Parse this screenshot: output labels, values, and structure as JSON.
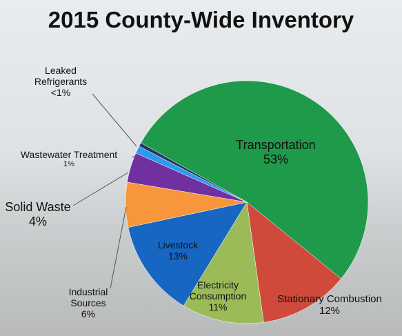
{
  "chart_data": {
    "type": "pie",
    "title": "2015 County-Wide Inventory",
    "categories": [
      "Transportation",
      "Stationary Combustion",
      "Electricity Consumption",
      "Livestock",
      "Industrial Sources",
      "Solid Waste",
      "Wastewater Treatment",
      "Leaked Refrigerants"
    ],
    "values": [
      53,
      12,
      11,
      13,
      6,
      4,
      1,
      0.5
    ],
    "value_labels": [
      "53%",
      "12%",
      "11%",
      "13%",
      "6%",
      "4%",
      "1%",
      "<1%"
    ],
    "colors": [
      "#1e9a4a",
      "#d04a3b",
      "#9bbb59",
      "#1766c2",
      "#f7963a",
      "#7030a0",
      "#2b9af0",
      "#1f3864"
    ]
  }
}
